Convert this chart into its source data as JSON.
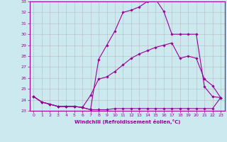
{
  "xlabel": "Windchill (Refroidissement éolien,°C)",
  "bg_color": "#cde9f0",
  "line_color": "#990099",
  "grid_color": "#b0b0b0",
  "xlim": [
    -0.5,
    23.5
  ],
  "ylim": [
    23,
    33
  ],
  "xticks": [
    0,
    1,
    2,
    3,
    4,
    5,
    6,
    7,
    8,
    9,
    10,
    11,
    12,
    13,
    14,
    15,
    16,
    17,
    18,
    19,
    20,
    21,
    22,
    23
  ],
  "yticks": [
    23,
    24,
    25,
    26,
    27,
    28,
    29,
    30,
    31,
    32,
    33
  ],
  "series": [
    {
      "x": [
        0,
        1,
        2,
        3,
        4,
        5,
        6,
        7,
        8,
        9,
        10,
        11,
        12,
        13,
        14,
        15,
        16,
        17,
        18,
        19,
        20,
        21,
        22,
        23
      ],
      "y": [
        24.3,
        23.8,
        23.6,
        23.4,
        23.4,
        23.4,
        23.3,
        23.1,
        27.7,
        29.0,
        30.3,
        32.0,
        32.2,
        32.5,
        33.0,
        33.2,
        32.1,
        30.0,
        30.0,
        30.0,
        30.0,
        25.2,
        24.3,
        24.2
      ]
    },
    {
      "x": [
        0,
        1,
        2,
        3,
        4,
        5,
        6,
        7,
        8,
        9,
        10,
        11,
        12,
        13,
        14,
        15,
        16,
        17,
        18,
        19,
        20,
        21,
        22,
        23
      ],
      "y": [
        24.3,
        23.8,
        23.6,
        23.4,
        23.4,
        23.4,
        23.3,
        23.1,
        23.1,
        23.1,
        23.2,
        23.2,
        23.2,
        23.2,
        23.2,
        23.2,
        23.2,
        23.2,
        23.2,
        23.2,
        23.2,
        23.2,
        23.2,
        24.2
      ]
    },
    {
      "x": [
        0,
        1,
        2,
        3,
        4,
        5,
        6,
        7,
        8,
        9,
        10,
        11,
        12,
        13,
        14,
        15,
        16,
        17,
        18,
        19,
        20,
        21,
        22,
        23
      ],
      "y": [
        24.3,
        23.8,
        23.6,
        23.4,
        23.4,
        23.4,
        23.3,
        24.4,
        25.9,
        26.1,
        26.6,
        27.2,
        27.8,
        28.2,
        28.5,
        28.8,
        29.0,
        29.2,
        27.8,
        28.0,
        27.8,
        25.9,
        25.3,
        24.2
      ]
    }
  ]
}
